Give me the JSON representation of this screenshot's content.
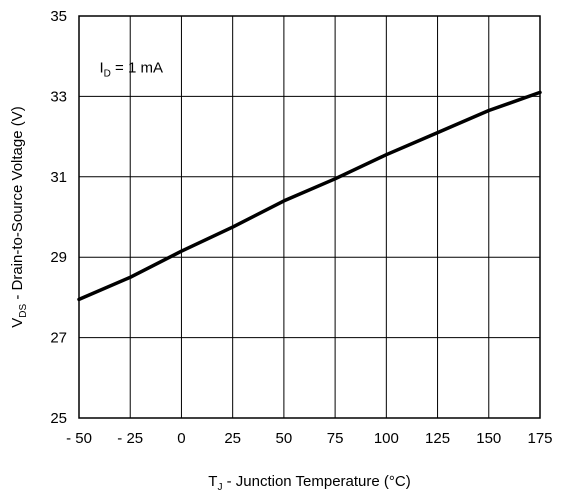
{
  "chart_data": {
    "type": "line",
    "title": "",
    "xlabel": {
      "main": "T",
      "sub": "J",
      "rest": " - Junction Temperature (°C)"
    },
    "ylabel": {
      "main": "V",
      "sub": "DS",
      "rest": " - Drain-to-Source Voltage (V)"
    },
    "xlim": [
      -50,
      175
    ],
    "ylim": [
      25,
      35
    ],
    "x_ticks": [
      -50,
      -25,
      0,
      25,
      50,
      75,
      100,
      125,
      150,
      175
    ],
    "x_tick_labels": [
      "- 50",
      "- 25",
      "0",
      "25",
      "50",
      "75",
      "100",
      "125",
      "150",
      "175"
    ],
    "y_ticks": [
      25,
      27,
      29,
      31,
      33,
      35
    ],
    "y_tick_labels": [
      "25",
      "27",
      "29",
      "31",
      "33",
      "35"
    ],
    "grid": true,
    "annotation": {
      "main": "I",
      "sub": "D",
      "rest": " = 1 mA",
      "x": -40,
      "y": 33.6
    },
    "series": [
      {
        "x": [
          -50,
          -25,
          0,
          25,
          50,
          75,
          100,
          125,
          150,
          175
        ],
        "y": [
          27.95,
          28.5,
          29.15,
          29.75,
          30.4,
          30.95,
          31.55,
          32.1,
          32.65,
          33.1
        ]
      }
    ]
  }
}
